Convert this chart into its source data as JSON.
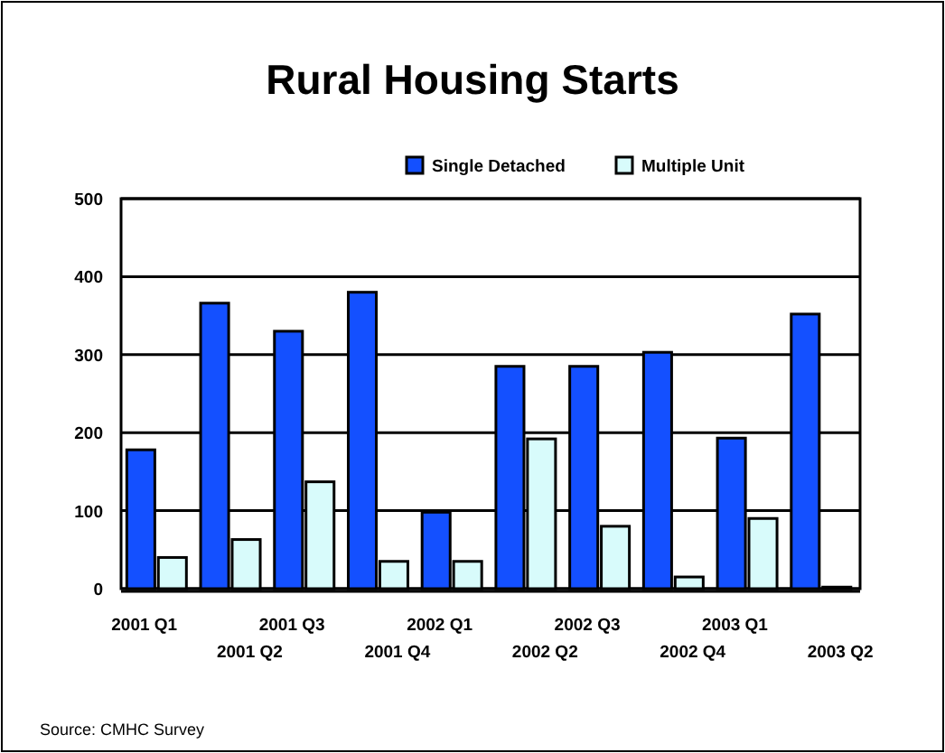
{
  "chart_data": {
    "type": "bar",
    "title": "Rural Housing Starts",
    "categories": [
      "2001 Q1",
      "2001 Q2",
      "2001 Q3",
      "2001 Q4",
      "2002 Q1",
      "2002 Q2",
      "2002 Q3",
      "2002 Q4",
      "2003 Q1",
      "2003 Q2"
    ],
    "series": [
      {
        "name": "Single Detached",
        "color": "#1450ff",
        "values": [
          178,
          366,
          330,
          380,
          98,
          285,
          285,
          303,
          193,
          352
        ]
      },
      {
        "name": "Multiple Unit",
        "color": "#d8fbfb",
        "values": [
          40,
          63,
          137,
          35,
          35,
          192,
          80,
          15,
          90,
          2
        ]
      }
    ],
    "ylim": [
      0,
      500
    ],
    "yticks": [
      0,
      100,
      200,
      300,
      400,
      500
    ],
    "grid": "y",
    "legend": "top right",
    "annotations": [
      "Source: CMHC Survey"
    ]
  }
}
